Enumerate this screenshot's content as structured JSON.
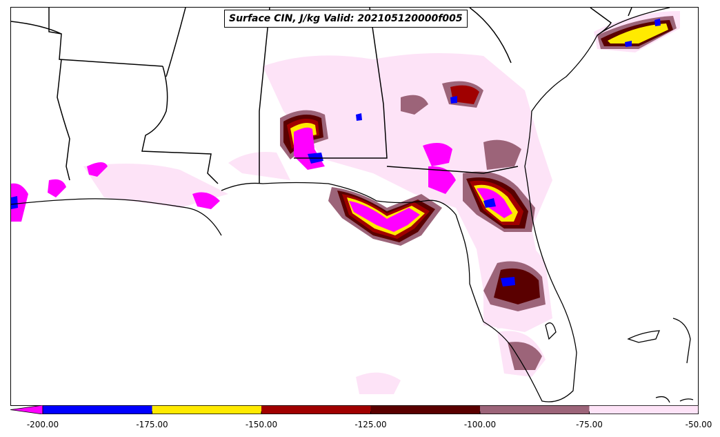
{
  "title": "Surface CIN, J/kg Valid: 202105120000f005",
  "colorbar": {
    "min": -200,
    "max": -50,
    "extend": "min",
    "under_color": "#ff00ff",
    "bins": [
      {
        "from": -200,
        "to": -175,
        "color": "#0000ff"
      },
      {
        "from": -175,
        "to": -150,
        "color": "#ffea00"
      },
      {
        "from": -150,
        "to": -125,
        "color": "#a00000"
      },
      {
        "from": -125,
        "to": -100,
        "color": "#5a0000"
      },
      {
        "from": -100,
        "to": -75,
        "color": "#9c6479"
      },
      {
        "from": -75,
        "to": -50,
        "color": "#fde3f7"
      }
    ],
    "ticks": [
      {
        "value": -200,
        "label": "-200.00"
      },
      {
        "value": -175,
        "label": "-175.00"
      },
      {
        "value": -150,
        "label": "-150.00"
      },
      {
        "value": -125,
        "label": "-125.00"
      },
      {
        "value": -100,
        "label": "-100.00"
      },
      {
        "value": -75,
        "label": "-75.00"
      },
      {
        "value": -50,
        "label": "-50.00"
      }
    ]
  }
}
